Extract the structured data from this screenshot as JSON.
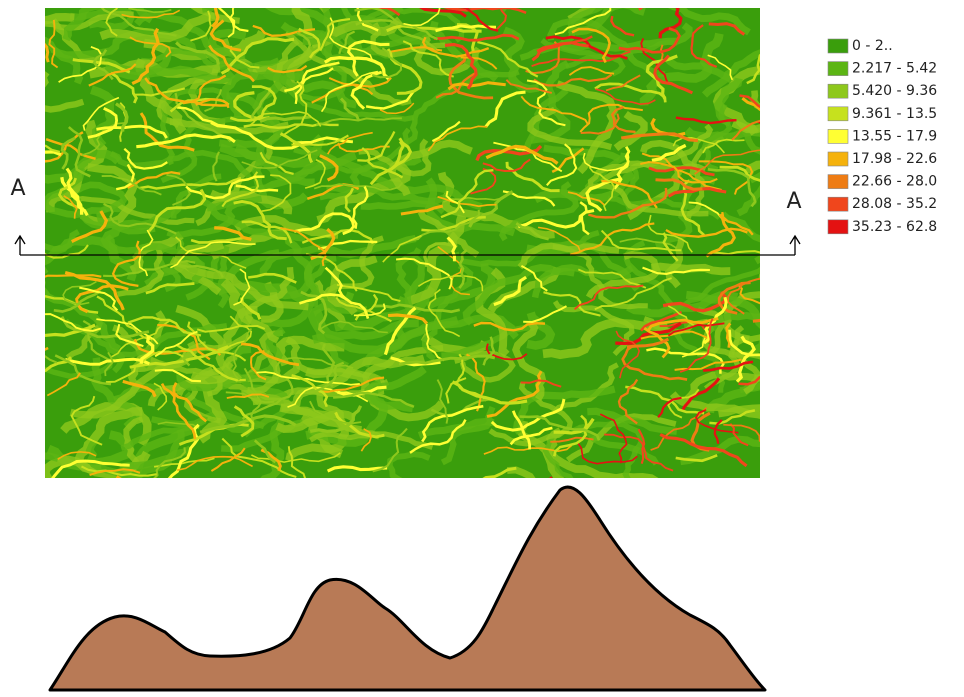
{
  "legend": {
    "items": [
      {
        "label": "0 - 2..",
        "color": "#3a9e0c"
      },
      {
        "label": "2.217 - 5.42",
        "color": "#5cb514"
      },
      {
        "label": "5.420 - 9.36",
        "color": "#8ec81c"
      },
      {
        "label": "9.361 - 13.5",
        "color": "#c6e11e"
      },
      {
        "label": "13.55 - 17.9",
        "color": "#ffff33"
      },
      {
        "label": "17.98 - 22.6",
        "color": "#f5b20c"
      },
      {
        "label": "22.66 - 28.0",
        "color": "#ee7c14"
      },
      {
        "label": "28.08 - 35.2",
        "color": "#f0461c"
      },
      {
        "label": "35.23 - 62.8",
        "color": "#e41212"
      }
    ]
  },
  "section": {
    "start_label": "A",
    "end_label": "A"
  }
}
